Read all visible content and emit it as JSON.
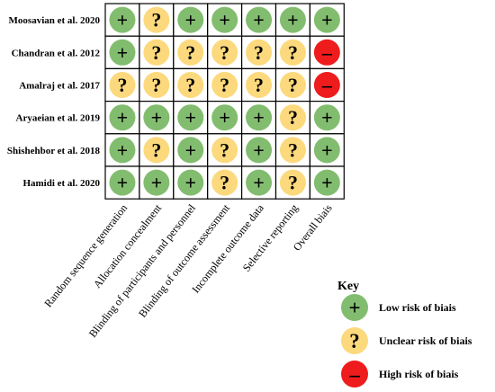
{
  "chart_data": {
    "type": "table",
    "studies": [
      "Moosavian et al. 2020",
      "Chandran et al. 2012",
      "Amalraj et al. 2017",
      "Aryaeian et al. 2019",
      "Shishehbor et al. 2018",
      "Hamidi et al. 2020"
    ],
    "domains": [
      "Random sequence generation",
      "Allocation concealment",
      "Blinding of participants and personnel",
      "Blinding of outcome assessment",
      "Incomplete outcome data",
      "Selective reporting",
      "Overall biais"
    ],
    "ratings": [
      [
        "low",
        "unclear",
        "low",
        "low",
        "low",
        "low",
        "low"
      ],
      [
        "low",
        "unclear",
        "unclear",
        "unclear",
        "unclear",
        "unclear",
        "high"
      ],
      [
        "unclear",
        "unclear",
        "unclear",
        "unclear",
        "unclear",
        "unclear",
        "high"
      ],
      [
        "low",
        "low",
        "low",
        "low",
        "low",
        "unclear",
        "low"
      ],
      [
        "low",
        "unclear",
        "low",
        "unclear",
        "low",
        "unclear",
        "low"
      ],
      [
        "low",
        "low",
        "low",
        "unclear",
        "low",
        "unclear",
        "low"
      ]
    ],
    "legend_placement": "bottom-right"
  },
  "key": {
    "title": "Key",
    "items": [
      {
        "level": "low",
        "symbol": "+",
        "label": "Low risk of biais"
      },
      {
        "level": "unclear",
        "symbol": "?",
        "label": "Unclear risk of biais"
      },
      {
        "level": "high",
        "symbol": "–",
        "label": "High risk of biais"
      }
    ]
  },
  "colors": {
    "low": "#82bd6f",
    "unclear": "#fcd97d",
    "high": "#ee1c1c",
    "grid_line": "#000000",
    "text": "#000000"
  },
  "symbols": {
    "low": "+",
    "unclear": "?",
    "high": "–"
  }
}
